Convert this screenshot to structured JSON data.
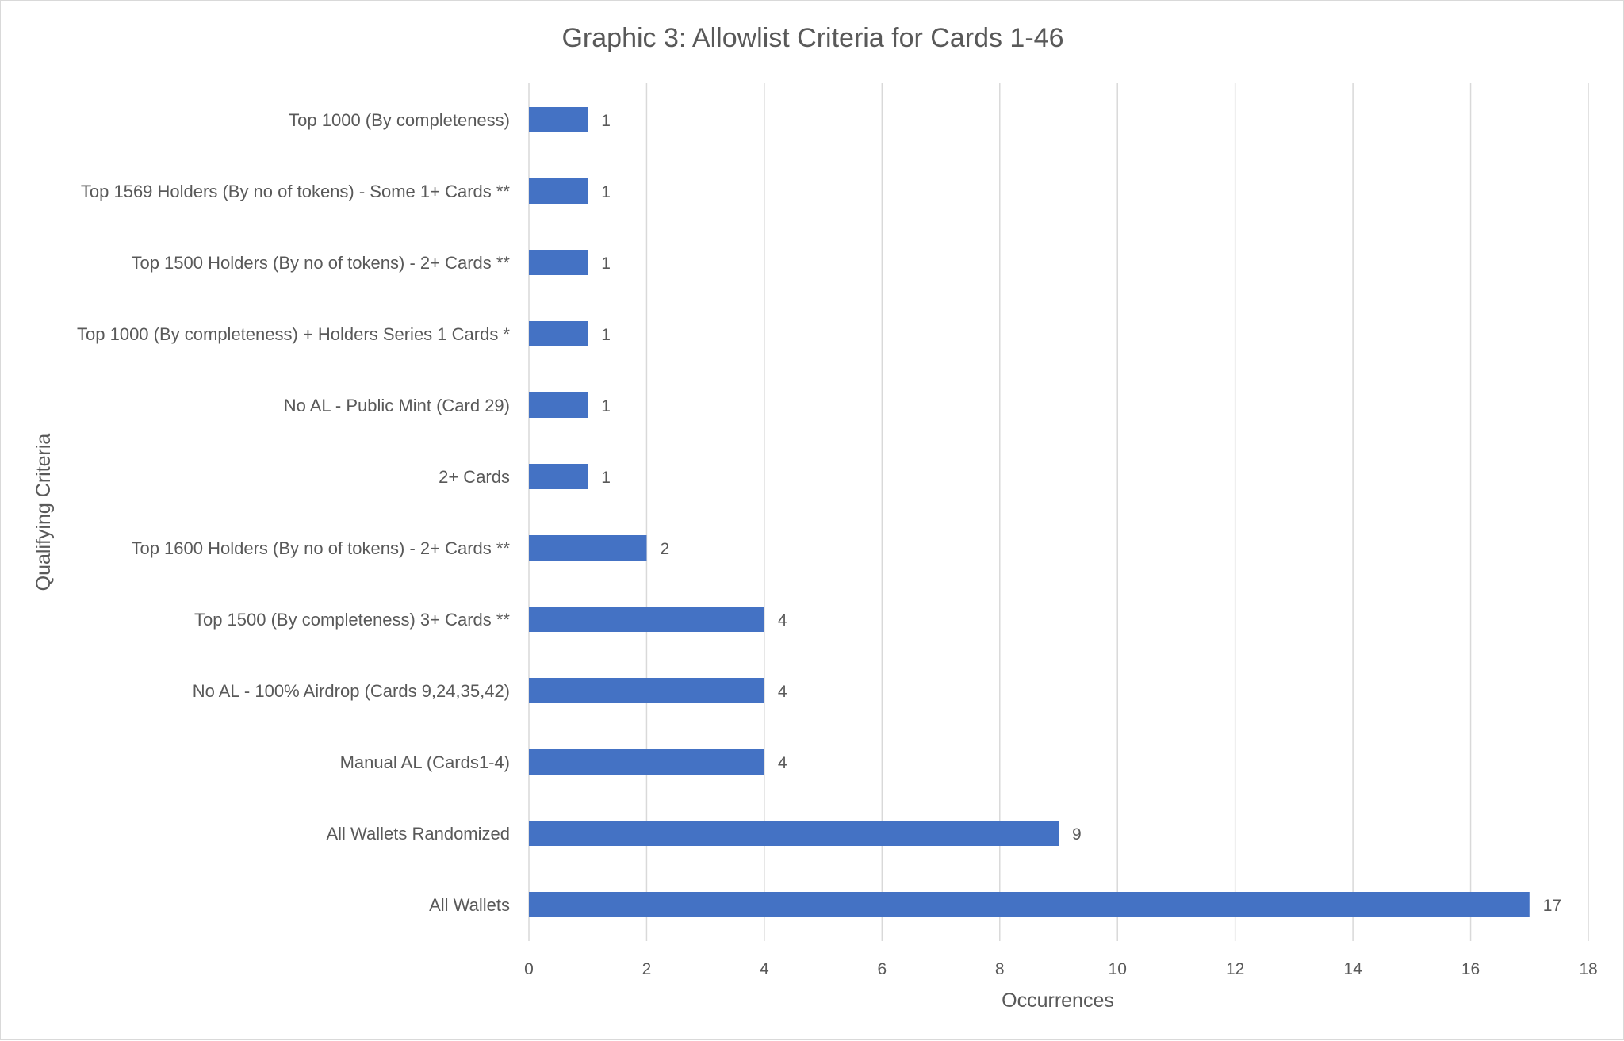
{
  "chart_data": {
    "type": "bar",
    "orientation": "horizontal",
    "title": "Graphic 3: Allowlist Criteria for Cards 1-46",
    "xlabel": "Occurrences",
    "ylabel": "Qualifying Criteria",
    "xlim": [
      0,
      18
    ],
    "xticks": [
      0,
      2,
      4,
      6,
      8,
      10,
      12,
      14,
      16,
      18
    ],
    "grid": true,
    "legend": "none",
    "bar_color": "#4472C4",
    "categories": [
      "Top 1000 (By completeness)",
      "Top 1569 Holders (By no of tokens) - Some 1+ Cards **",
      "Top 1500 Holders (By no of tokens) - 2+ Cards **",
      "Top 1000 (By completeness) + Holders Series 1 Cards *",
      "No AL - Public Mint (Card 29)",
      "2+ Cards",
      "Top 1600 Holders (By no of tokens) - 2+ Cards **",
      "Top 1500 (By completeness) 3+ Cards **",
      "No AL - 100% Airdrop (Cards 9,24,35,42)",
      "Manual AL (Cards1-4)",
      "All Wallets Randomized",
      "All Wallets"
    ],
    "values": [
      1,
      1,
      1,
      1,
      1,
      1,
      2,
      4,
      4,
      4,
      9,
      17
    ]
  }
}
